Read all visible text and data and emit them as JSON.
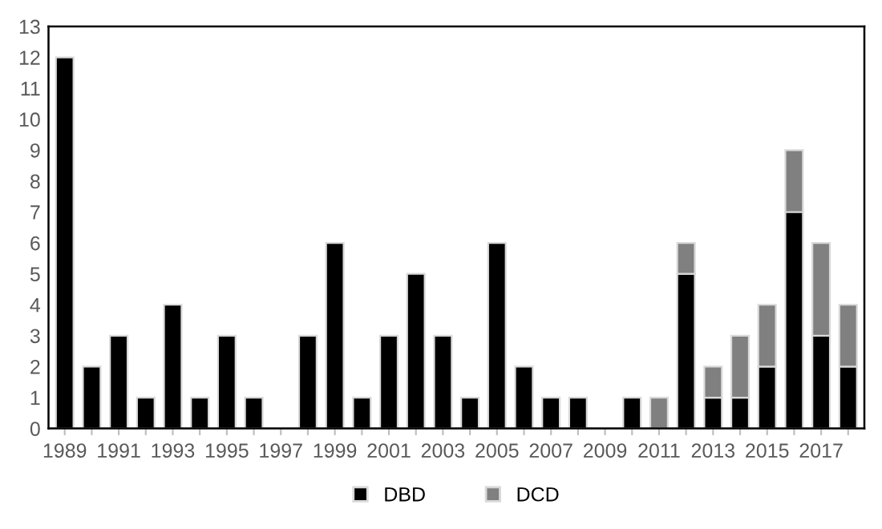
{
  "chart_data": {
    "type": "bar",
    "stacked": true,
    "categories": [
      "1989",
      null,
      "1991",
      null,
      "1993",
      null,
      "1995",
      null,
      "1997",
      null,
      "1999",
      null,
      "2001",
      null,
      "2003",
      null,
      "2005",
      null,
      "2007",
      null,
      "2009",
      null,
      "2011",
      null,
      "2013",
      null,
      "2015",
      null,
      "2017",
      null
    ],
    "series": [
      {
        "name": "DBD",
        "color": "#000000",
        "values": [
          12,
          2,
          3,
          1,
          4,
          1,
          3,
          1,
          0,
          3,
          6,
          1,
          3,
          5,
          3,
          1,
          6,
          2,
          1,
          1,
          0,
          1,
          0,
          5,
          1,
          1,
          2,
          7,
          3,
          2
        ]
      },
      {
        "name": "DCD",
        "color": "#808080",
        "values": [
          0,
          0,
          0,
          0,
          0,
          0,
          0,
          0,
          0,
          0,
          0,
          0,
          0,
          0,
          0,
          0,
          0,
          0,
          0,
          0,
          0,
          0,
          1,
          1,
          1,
          2,
          2,
          2,
          3,
          2
        ]
      }
    ],
    "ylim": [
      0,
      13
    ],
    "yticks": [
      0,
      1,
      2,
      3,
      4,
      5,
      6,
      7,
      8,
      9,
      10,
      11,
      12,
      13
    ],
    "grid": false,
    "legend": "bottom"
  }
}
